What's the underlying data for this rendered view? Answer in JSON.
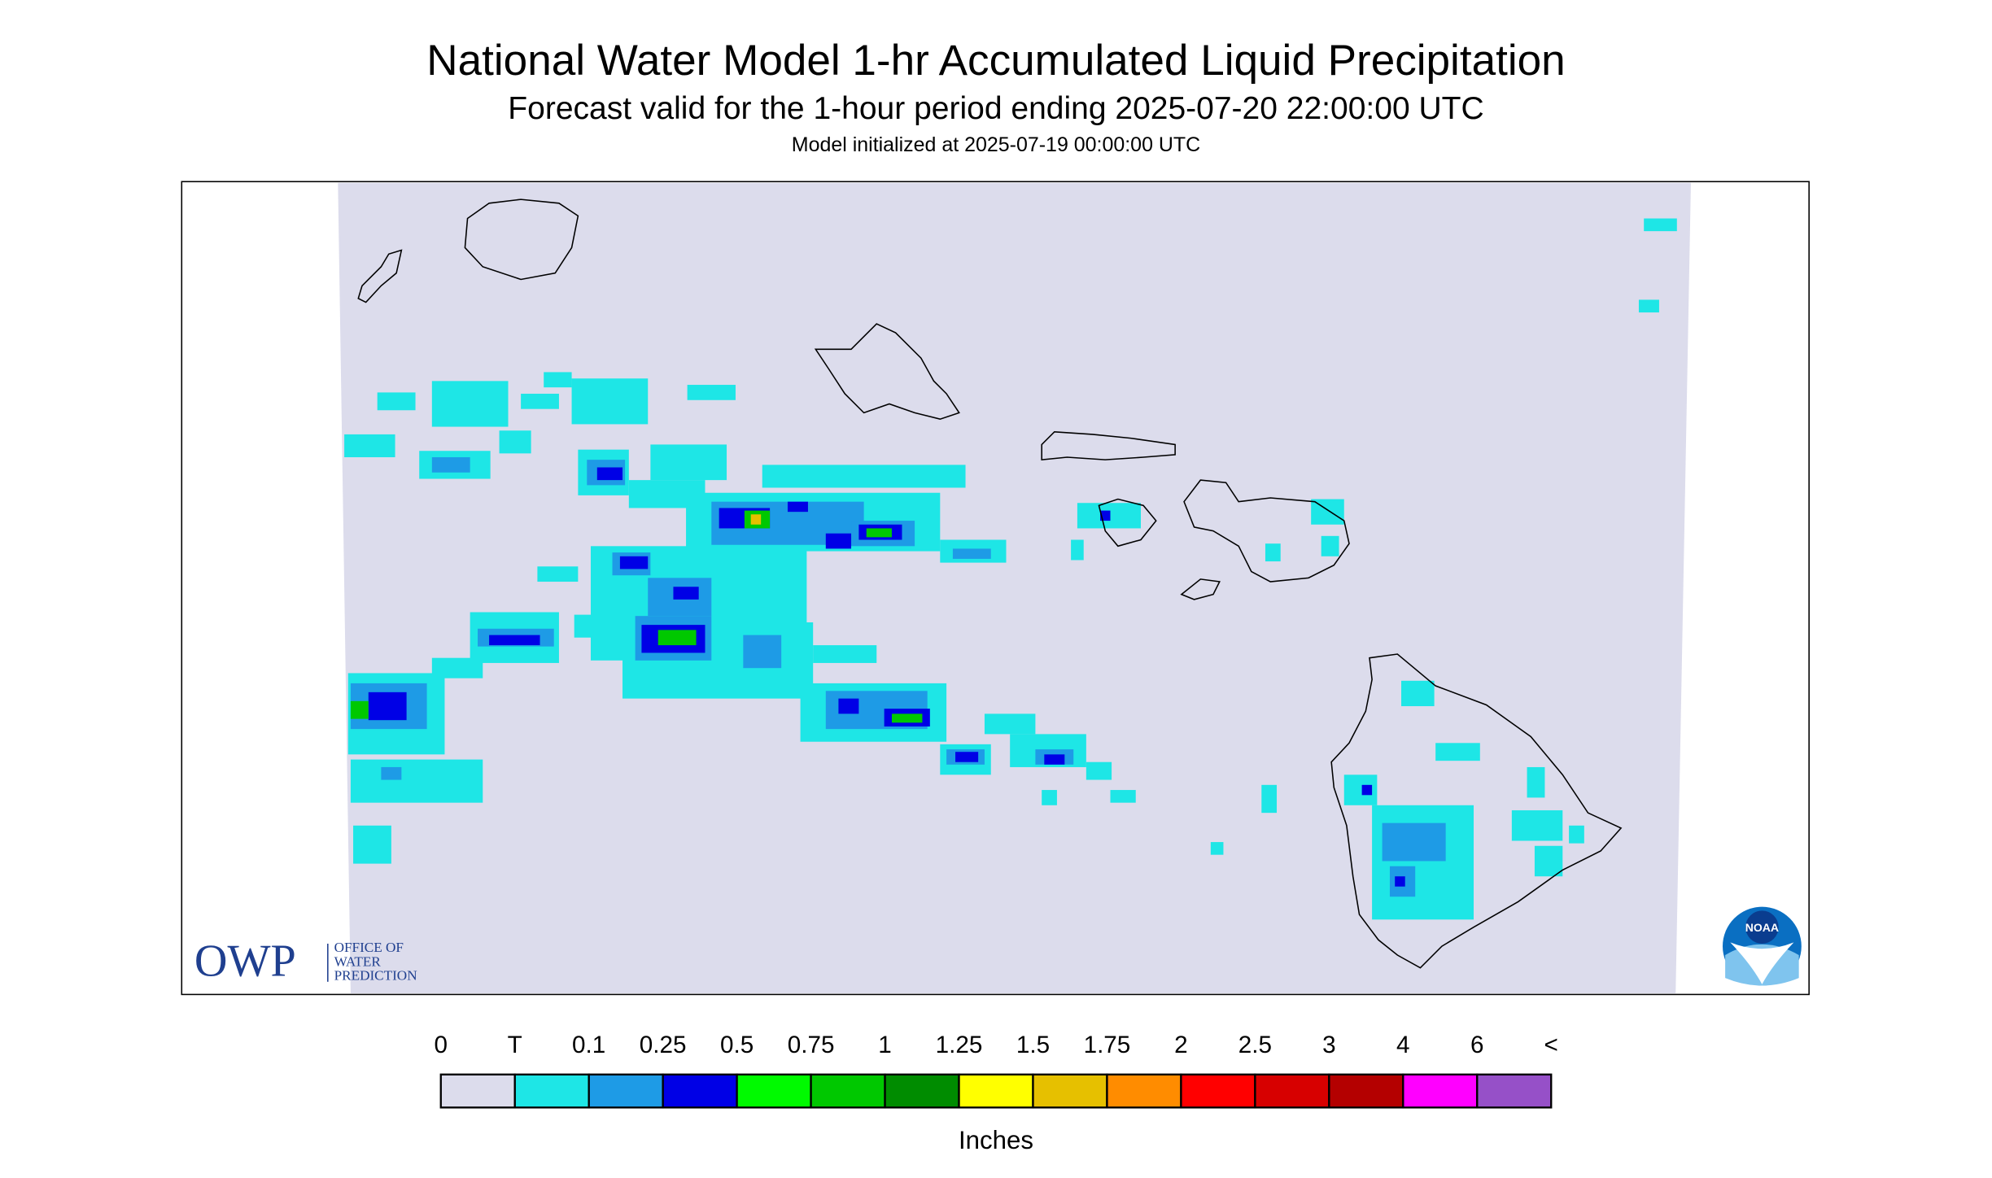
{
  "header": {
    "title": "National Water Model 1-hr Accumulated Liquid Precipitation",
    "subtitle": "Forecast valid for the 1-hour period ending 2025-07-20 22:00:00 UTC",
    "init": "Model initialized at 2025-07-19 00:00:00 UTC"
  },
  "logos": {
    "owp": "OWP",
    "owp_lines": [
      "OFFICE OF",
      "WATER",
      "PREDICTION"
    ],
    "noaa": "NOAA"
  },
  "legend": {
    "labels": [
      "0",
      "T",
      "0.1",
      "0.25",
      "0.5",
      "0.75",
      "1",
      "1.25",
      "1.5",
      "1.75",
      "2",
      "2.5",
      "3",
      "4",
      "6",
      "<"
    ],
    "colors": [
      "#dcdcec",
      "#1ee6e6",
      "#1e9be6",
      "#0000e6",
      "#00fa00",
      "#00c800",
      "#008c00",
      "#ffff00",
      "#e6c000",
      "#ff8c00",
      "#ff0000",
      "#d70000",
      "#b40000",
      "#ff00ff",
      "#9650c8"
    ],
    "unit": "Inches"
  }
}
